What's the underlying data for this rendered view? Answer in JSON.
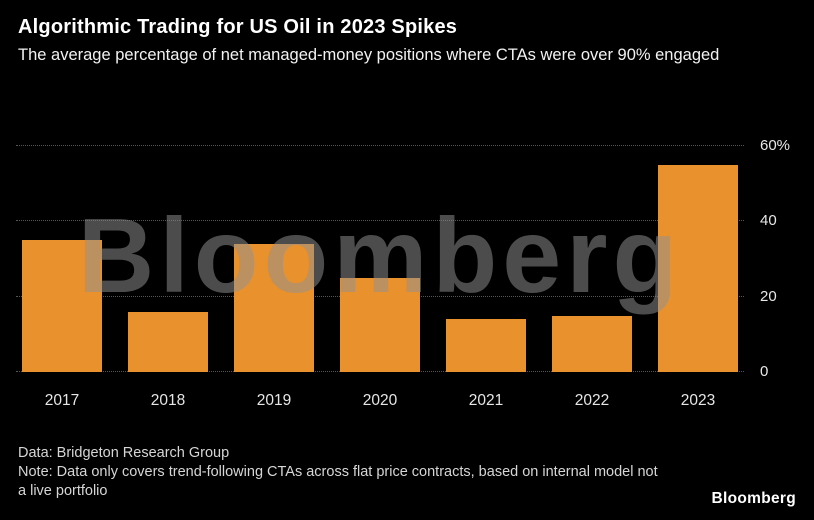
{
  "header": {
    "title": "Algorithmic Trading for US Oil in 2023 Spikes",
    "subtitle": "The average percentage of net managed-money positions where CTAs were over 90% engaged"
  },
  "chart_data": {
    "type": "bar",
    "categories": [
      "2017",
      "2018",
      "2019",
      "2020",
      "2021",
      "2022",
      "2023"
    ],
    "values": [
      35,
      16,
      34,
      25,
      14,
      15,
      55
    ],
    "title": "Algorithmic Trading for US Oil in 2023 Spikes",
    "xlabel": "",
    "ylabel": "",
    "ylim": [
      0,
      60
    ],
    "yticks": [
      {
        "value": 0,
        "label": "0"
      },
      {
        "value": 20,
        "label": "20"
      },
      {
        "value": 40,
        "label": "40"
      },
      {
        "value": 60,
        "label": "60%"
      }
    ],
    "bar_color": "#E8912D",
    "grid": true,
    "legend": "none"
  },
  "watermark": "Bloomberg",
  "footer": {
    "source": "Data: Bridgeton Research Group",
    "note": "Note: Data only covers trend-following CTAs across flat price contracts, based on internal model not a live portfolio",
    "logo": "Bloomberg"
  }
}
